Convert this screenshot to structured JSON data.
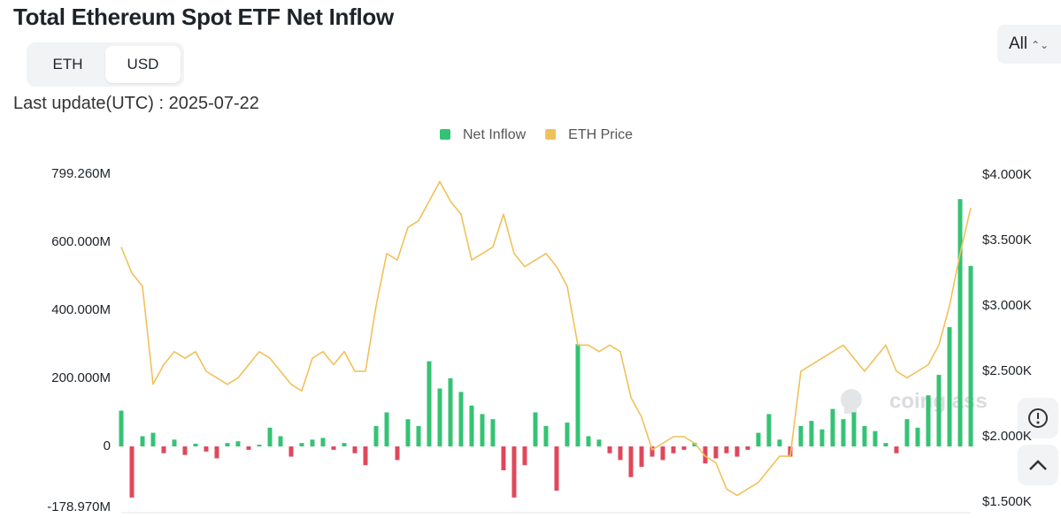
{
  "chart_data": {
    "type": "bar",
    "title": "Total Ethereum Spot ETF Net Inflow",
    "series": [
      {
        "name": "Net Inflow",
        "type": "bar",
        "color": "#34c374",
        "negative_color": "#e0475b",
        "values": [
          105000000,
          -150000000,
          30000000,
          40000000,
          -20000000,
          20000000,
          -25000000,
          8000000,
          -15000000,
          -35000000,
          10000000,
          15000000,
          -10000000,
          5000000,
          55000000,
          30000000,
          -30000000,
          10000000,
          20000000,
          25000000,
          -10000000,
          10000000,
          -20000000,
          -55000000,
          60000000,
          100000000,
          -40000000,
          80000000,
          60000000,
          250000000,
          170000000,
          200000000,
          160000000,
          120000000,
          95000000,
          80000000,
          -70000000,
          -150000000,
          -55000000,
          100000000,
          60000000,
          -130000000,
          70000000,
          300000000,
          30000000,
          20000000,
          -20000000,
          -40000000,
          -90000000,
          -60000000,
          -30000000,
          -40000000,
          -20000000,
          -10000000,
          10000000,
          -50000000,
          -35000000,
          -20000000,
          -30000000,
          -10000000,
          40000000,
          95000000,
          20000000,
          -30000000,
          60000000,
          75000000,
          50000000,
          110000000,
          80000000,
          100000000,
          60000000,
          45000000,
          10000000,
          -20000000,
          80000000,
          55000000,
          150000000,
          210000000,
          350000000,
          726000000,
          530000000
        ]
      },
      {
        "name": "ETH Price",
        "type": "line",
        "axis": "y2",
        "color": "#f0c15a",
        "values": [
          3450,
          3250,
          3150,
          2400,
          2550,
          2650,
          2600,
          2650,
          2500,
          2450,
          2400,
          2450,
          2550,
          2650,
          2600,
          2500,
          2400,
          2350,
          2600,
          2650,
          2550,
          2650,
          2500,
          2500,
          3000,
          3400,
          3350,
          3600,
          3650,
          3800,
          3950,
          3800,
          3700,
          3350,
          3400,
          3450,
          3700,
          3400,
          3300,
          3350,
          3400,
          3300,
          3150,
          2700,
          2700,
          2650,
          2700,
          2650,
          2300,
          2150,
          1900,
          1950,
          2000,
          2000,
          1950,
          1850,
          1800,
          1600,
          1550,
          1600,
          1650,
          1750,
          1850,
          1850,
          2500,
          2550,
          2600,
          2650,
          2700,
          2600,
          2500,
          2600,
          2700,
          2500,
          2450,
          2500,
          2550,
          2700,
          3000,
          3400,
          3750
        ]
      }
    ],
    "ylim": [
      -178970000,
      799260000
    ],
    "yticks": [
      {
        "value": 799260000,
        "label": "799.260M"
      },
      {
        "value": 600000000,
        "label": "600.000M"
      },
      {
        "value": 400000000,
        "label": "400.000M"
      },
      {
        "value": 200000000,
        "label": "200.000M"
      },
      0,
      {
        "value": -178970000,
        "label": "-178.970M"
      }
    ],
    "y2lim": [
      1459,
      4007
    ],
    "y2ticks": [
      {
        "value": 4000,
        "label": "$4.000K"
      },
      {
        "value": 3500,
        "label": "$3.500K"
      },
      {
        "value": 3000,
        "label": "$3.000K"
      },
      {
        "value": 2500,
        "label": "$2.500K"
      },
      {
        "value": 2000,
        "label": "$2.000K"
      },
      {
        "value": 1500,
        "label": "$1.500K"
      }
    ],
    "grid": false,
    "legend": "top"
  },
  "controls": {
    "units": [
      "ETH",
      "USD"
    ],
    "range": "All"
  },
  "last_update": "Last update(UTC) : 2025-07-22",
  "watermark": "coinglass"
}
